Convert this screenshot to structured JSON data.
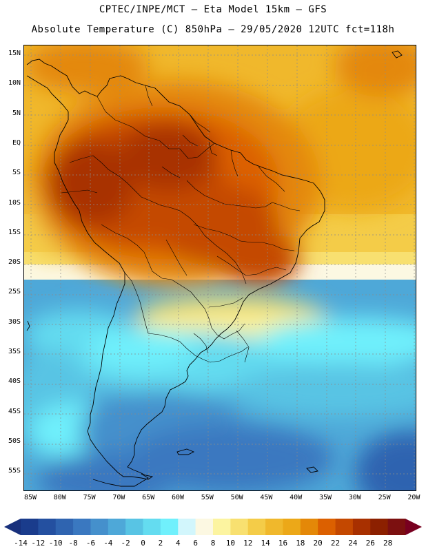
{
  "header": {
    "line1": "CPTEC/INPE/MCT –  Eta Model 15km – GFS",
    "line2": "Absolute Temperature (C) 850hPa – 29/05/2020 12UTC fct=118h"
  },
  "map": {
    "lat_labels": [
      "15N",
      "10N",
      "5N",
      "EQ",
      "5S",
      "10S",
      "15S",
      "20S",
      "25S",
      "30S",
      "35S",
      "40S",
      "45S",
      "50S",
      "55S"
    ],
    "lon_labels": [
      "85W",
      "80W",
      "75W",
      "70W",
      "65W",
      "60W",
      "55W",
      "50W",
      "45W",
      "40W",
      "35W",
      "30W",
      "25W",
      "20W"
    ]
  },
  "colorbar": {
    "labels": [
      "-14",
      "-12",
      "-10",
      "-8",
      "-6",
      "-4",
      "-2",
      "0",
      "2",
      "4",
      "6",
      "8",
      "10",
      "12",
      "14",
      "16",
      "18",
      "20",
      "22",
      "24",
      "26",
      "28"
    ],
    "colors": [
      "#1a3c8c",
      "#2450a0",
      "#2f64b0",
      "#3a78c0",
      "#4590cc",
      "#4ea8d8",
      "#58c4e4",
      "#64dcf0",
      "#70f0fc",
      "#d2f6fc",
      "#fcf8e2",
      "#fcf4a0",
      "#f8e070",
      "#f4cc48",
      "#f0b82c",
      "#eca818",
      "#e48808",
      "#dc6000",
      "#c44800",
      "#a83000",
      "#8c2000",
      "#7c1010"
    ],
    "low_end_color": "#18307c",
    "high_end_color": "#780020"
  }
}
